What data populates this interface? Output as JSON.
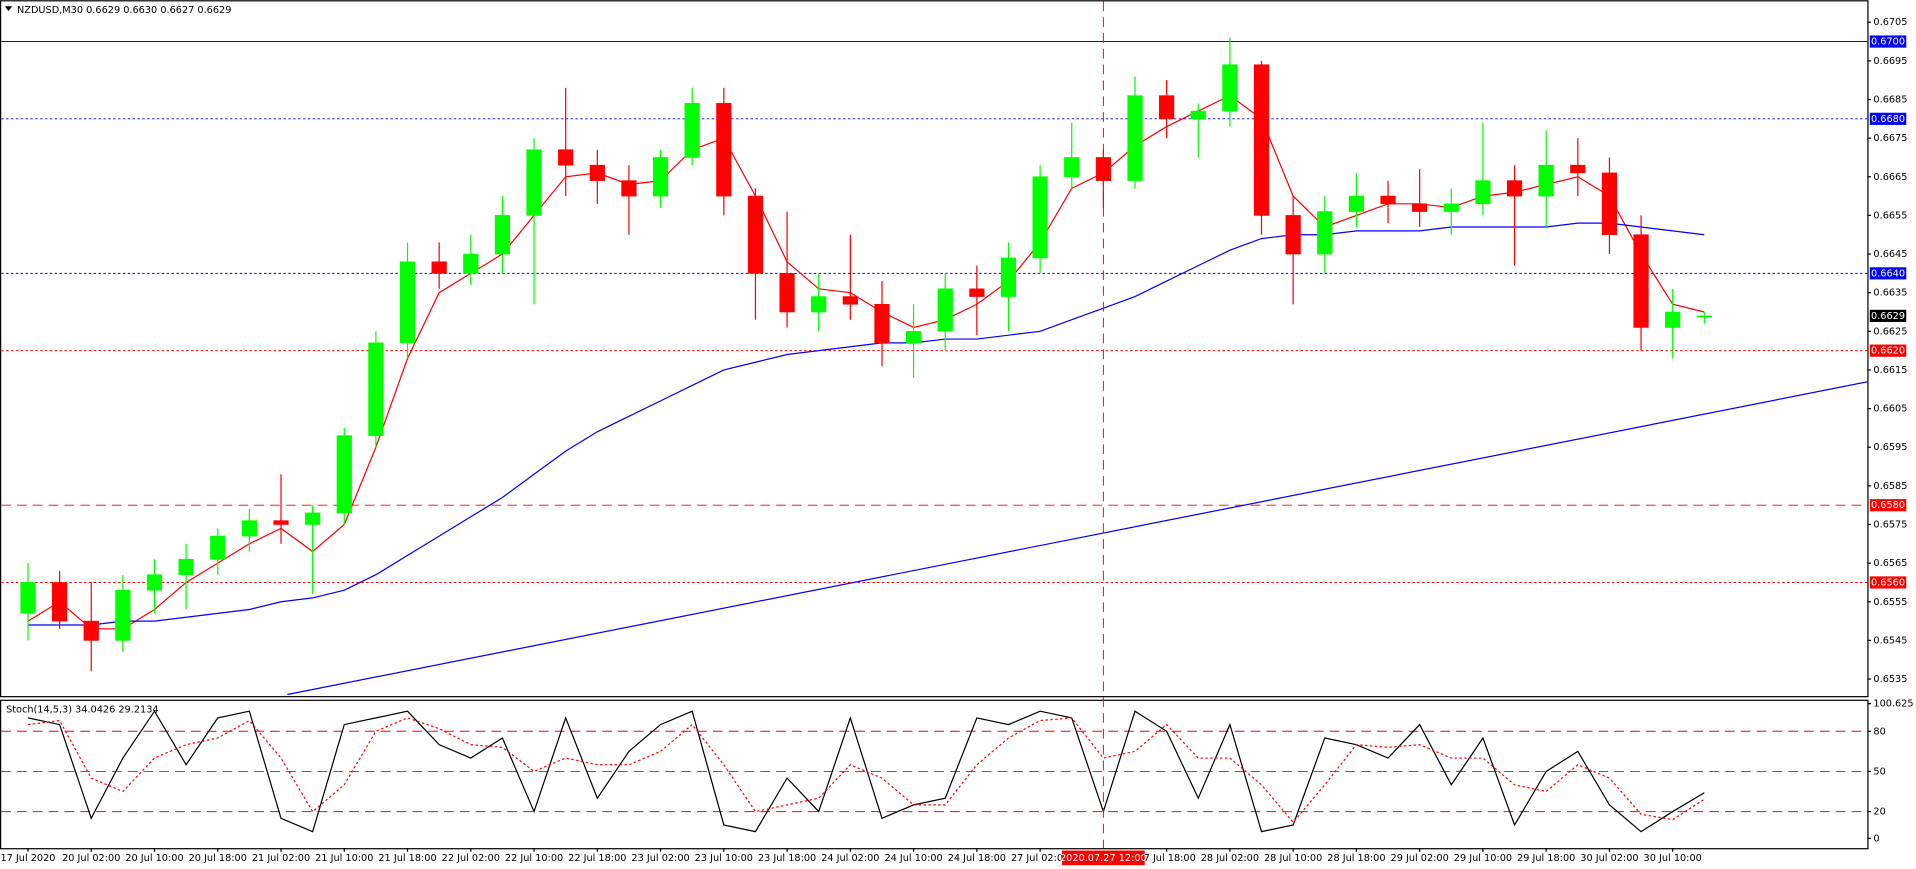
{
  "chart_data": [
    {
      "type": "candlestick",
      "title": "NZDUSD,M30  0.6629 0.6630 0.6627 0.6629",
      "categories": [
        "17 Jul 2020",
        null,
        "20 Jul 02:00",
        null,
        "20 Jul 10:00",
        null,
        "20 Jul 18:00",
        null,
        "21 Jul 02:00",
        null,
        "21 Jul 10:00",
        null,
        "21 Jul 18:00",
        null,
        "22 Jul 02:00",
        null,
        "22 Jul 10:00",
        null,
        "22 Jul 18:00",
        null,
        "23 Jul 02:00",
        null,
        "23 Jul 10:00",
        null,
        "23 Jul 18:00",
        null,
        "24 Jul 02:00",
        null,
        "24 Jul 10:00",
        null,
        "24 Jul 18:00",
        null,
        "27 Jul 02:00",
        null,
        null,
        null,
        "27 Jul 18:00",
        null,
        "28 Jul 02:00",
        null,
        "28 Jul 10:00",
        null,
        "28 Jul 18:00",
        null,
        "29 Jul 02:00",
        null,
        "29 Jul 10:00",
        null,
        "29 Jul 18:00",
        null,
        "30 Jul 02:00",
        null,
        "30 Jul 10:00",
        null
      ],
      "open": [
        0.6552,
        0.656,
        0.655,
        0.6545,
        0.6558,
        0.6562,
        0.6566,
        0.6572,
        0.6576,
        0.6575,
        0.6578,
        0.6598,
        0.6622,
        0.6643,
        0.664,
        0.6645,
        0.6655,
        0.6672,
        0.6668,
        0.6664,
        0.666,
        0.667,
        0.6684,
        0.666,
        0.664,
        0.663,
        0.6634,
        0.6632,
        0.6622,
        0.6625,
        0.6636,
        0.6634,
        0.6644,
        0.6665,
        0.667,
        0.6664,
        0.6686,
        0.668,
        0.6682,
        0.6694,
        0.6655,
        0.6645,
        0.6656,
        0.666,
        0.6658,
        0.6656,
        0.6658,
        0.6664,
        0.666,
        0.6668,
        0.6666,
        0.665,
        0.6626,
        0.6629
      ],
      "high": [
        0.6565,
        0.6563,
        0.656,
        0.6562,
        0.6566,
        0.657,
        0.6574,
        0.6579,
        0.6588,
        0.658,
        0.66,
        0.6625,
        0.6648,
        0.6648,
        0.665,
        0.666,
        0.6675,
        0.6688,
        0.6672,
        0.6668,
        0.6672,
        0.6688,
        0.6688,
        0.6662,
        0.6656,
        0.664,
        0.665,
        0.6638,
        0.6632,
        0.664,
        0.6642,
        0.6648,
        0.6668,
        0.6679,
        0.6672,
        0.6691,
        0.669,
        0.6684,
        0.6701,
        0.6695,
        0.666,
        0.666,
        0.6666,
        0.6664,
        0.6667,
        0.6662,
        0.6679,
        0.6668,
        0.6677,
        0.6675,
        0.667,
        0.6655,
        0.6636,
        0.663
      ],
      "low": [
        0.6545,
        0.6548,
        0.6537,
        0.6542,
        0.6552,
        0.6553,
        0.6562,
        0.6568,
        0.657,
        0.6557,
        0.6575,
        0.6595,
        0.6618,
        0.6636,
        0.6637,
        0.664,
        0.6632,
        0.666,
        0.6658,
        0.665,
        0.6657,
        0.6668,
        0.6655,
        0.6628,
        0.6626,
        0.6625,
        0.6628,
        0.6616,
        0.6613,
        0.662,
        0.6624,
        0.6625,
        0.664,
        0.6662,
        0.6657,
        0.6662,
        0.6675,
        0.667,
        0.6678,
        0.665,
        0.6632,
        0.664,
        0.6652,
        0.6653,
        0.6652,
        0.665,
        0.6655,
        0.6642,
        0.6652,
        0.666,
        0.6645,
        0.662,
        0.6618,
        0.6627
      ],
      "close": [
        0.656,
        0.655,
        0.6545,
        0.6558,
        0.6562,
        0.6566,
        0.6572,
        0.6576,
        0.6575,
        0.6578,
        0.6598,
        0.6622,
        0.6643,
        0.664,
        0.6645,
        0.6655,
        0.6672,
        0.6668,
        0.6664,
        0.666,
        0.667,
        0.6684,
        0.666,
        0.664,
        0.663,
        0.6634,
        0.6632,
        0.6622,
        0.6625,
        0.6636,
        0.6634,
        0.6644,
        0.6665,
        0.667,
        0.6664,
        0.6686,
        0.668,
        0.6682,
        0.6694,
        0.6655,
        0.6645,
        0.6656,
        0.666,
        0.6658,
        0.6656,
        0.6658,
        0.6664,
        0.666,
        0.6668,
        0.6666,
        0.665,
        0.6626,
        0.663,
        0.6629
      ],
      "up_color": "#00ff00",
      "down_color": "#ff0000",
      "lines": [
        {
          "color": "#ff0000",
          "values": [
            0.655,
            0.6555,
            0.6548,
            0.6548,
            0.6553,
            0.656,
            0.6565,
            0.657,
            0.6574,
            0.6568,
            0.6575,
            0.6595,
            0.6618,
            0.6635,
            0.664,
            0.6645,
            0.6655,
            0.6665,
            0.6666,
            0.6663,
            0.6664,
            0.6672,
            0.6675,
            0.666,
            0.6643,
            0.6636,
            0.6635,
            0.663,
            0.6626,
            0.6628,
            0.6632,
            0.6638,
            0.6648,
            0.6662,
            0.6666,
            0.6673,
            0.6678,
            0.6682,
            0.6686,
            0.668,
            0.666,
            0.6652,
            0.6655,
            0.6658,
            0.6658,
            0.6657,
            0.666,
            0.6661,
            0.6663,
            0.6665,
            0.666,
            0.6645,
            0.6632,
            0.663
          ]
        },
        {
          "color": "#0000ff",
          "values": [
            0.6549,
            0.6549,
            0.6549,
            0.655,
            0.655,
            0.6551,
            0.6552,
            0.6553,
            0.6555,
            0.6556,
            0.6558,
            0.6562,
            0.6567,
            0.6572,
            0.6577,
            0.6582,
            0.6588,
            0.6594,
            0.6599,
            0.6603,
            0.6607,
            0.6611,
            0.6615,
            0.6617,
            0.6619,
            0.662,
            0.6621,
            0.6622,
            0.6622,
            0.6623,
            0.6623,
            0.6624,
            0.6625,
            0.6628,
            0.6631,
            0.6634,
            0.6638,
            0.6642,
            0.6646,
            0.6649,
            0.665,
            0.665,
            0.6651,
            0.6651,
            0.6651,
            0.6652,
            0.6652,
            0.6652,
            0.6652,
            0.6653,
            0.6653,
            0.6652,
            0.6651,
            0.665
          ]
        }
      ],
      "trendline": {
        "color": "#0000ff",
        "points": [
          [
            8.2,
            0.6531
          ],
          [
            58.2,
            0.6612
          ]
        ]
      },
      "levels": [
        {
          "value": 0.67,
          "label": "0.6700",
          "color": "#0000ff",
          "style": "solid"
        },
        {
          "value": 0.668,
          "label": "0.6680",
          "color": "#0000ff",
          "style": "dotted"
        },
        {
          "value": 0.664,
          "label": "0.6640",
          "color": "#0000ff",
          "style": "dotted"
        },
        {
          "value": 0.662,
          "label": "0.6620",
          "color": "#ff0000",
          "style": "dotted"
        },
        {
          "value": 0.658,
          "label": "0.6580",
          "color": "#ff0000",
          "style": "dashed"
        },
        {
          "value": 0.656,
          "label": "0.6560",
          "color": "#ff0000",
          "style": "dotted"
        }
      ],
      "current_price": 0.6629,
      "crosshair": {
        "label": "2020.07.27 12:00",
        "at": 34
      },
      "ylim": [
        0.65306,
        0.67107
      ],
      "yticks": [
        0.6705,
        0.6695,
        0.6685,
        0.6675,
        0.6665,
        0.6655,
        0.6645,
        0.6635,
        0.6625,
        0.6615,
        0.6605,
        0.6595,
        0.6585,
        0.6575,
        0.6565,
        0.6555,
        0.6545,
        0.6535
      ]
    },
    {
      "type": "line",
      "title": "Stoch(14,5,3) 34.0426 29.2134",
      "series": [
        {
          "color": "#000000",
          "style": "solid",
          "values": [
            90,
            85,
            15,
            60,
            95,
            55,
            90,
            95,
            15,
            5,
            85,
            90,
            95,
            70,
            60,
            75,
            20,
            90,
            30,
            65,
            85,
            95,
            10,
            5,
            45,
            20,
            90,
            15,
            25,
            30,
            90,
            85,
            95,
            90,
            20,
            95,
            80,
            30,
            85,
            5,
            10,
            75,
            70,
            60,
            85,
            40,
            75,
            10,
            50,
            65,
            25,
            5,
            20,
            34.0426
          ]
        },
        {
          "color": "#ff0000",
          "style": "dotted",
          "values": [
            85,
            88,
            45,
            35,
            60,
            70,
            75,
            88,
            60,
            20,
            40,
            80,
            90,
            82,
            70,
            68,
            50,
            60,
            55,
            55,
            65,
            85,
            55,
            20,
            25,
            30,
            55,
            45,
            25,
            25,
            55,
            75,
            88,
            90,
            60,
            65,
            85,
            60,
            60,
            40,
            12,
            40,
            70,
            68,
            70,
            60,
            60,
            40,
            35,
            55,
            45,
            18,
            14,
            29.2134
          ]
        }
      ],
      "levels": [
        80,
        50,
        20
      ],
      "ylim": [
        -7.3,
        103.6
      ],
      "yticks": [
        100.625,
        80,
        50,
        20,
        0
      ]
    }
  ]
}
